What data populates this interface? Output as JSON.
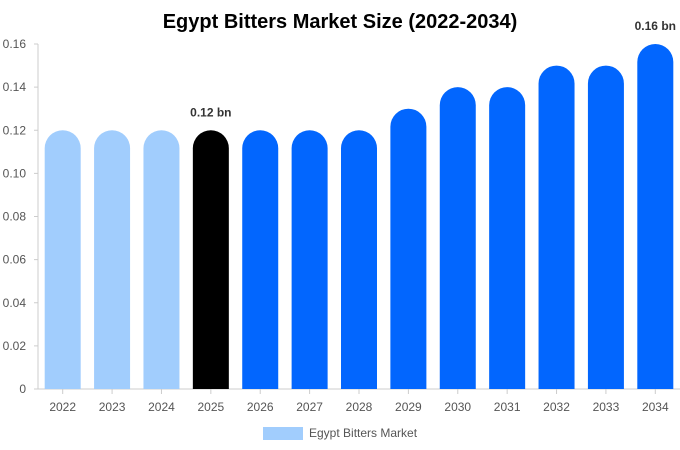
{
  "chart_data": {
    "type": "bar",
    "title": "Egypt Bitters Market Size (2022-2034)",
    "xlabel": "",
    "ylabel": "",
    "categories": [
      "2022",
      "2023",
      "2024",
      "2025",
      "2026",
      "2027",
      "2028",
      "2029",
      "2030",
      "2031",
      "2032",
      "2033",
      "2034"
    ],
    "series": [
      {
        "name": "Egypt Bitters Market",
        "values": [
          0.12,
          0.12,
          0.12,
          0.12,
          0.12,
          0.12,
          0.12,
          0.13,
          0.14,
          0.14,
          0.15,
          0.15,
          0.16
        ]
      }
    ],
    "ylim": [
      0,
      0.16
    ],
    "yticks": [
      "0",
      "0.02",
      "0.04",
      "0.06",
      "0.08",
      "0.10",
      "0.12",
      "0.14",
      "0.16"
    ],
    "data_labels": [
      {
        "category": "2025",
        "text": "0.12 bn"
      },
      {
        "category": "2034",
        "text": "0.16 bn"
      }
    ],
    "bar_colors": {
      "historical": "#a1cdfd",
      "base_year": "#000000",
      "forecast": "#0266fe"
    },
    "bar_color_groups": [
      "historical",
      "historical",
      "historical",
      "base_year",
      "forecast",
      "forecast",
      "forecast",
      "forecast",
      "forecast",
      "forecast",
      "forecast",
      "forecast",
      "forecast"
    ],
    "legend": {
      "position": "bottom-center",
      "color": "#a1cdfd"
    },
    "grid": false
  }
}
